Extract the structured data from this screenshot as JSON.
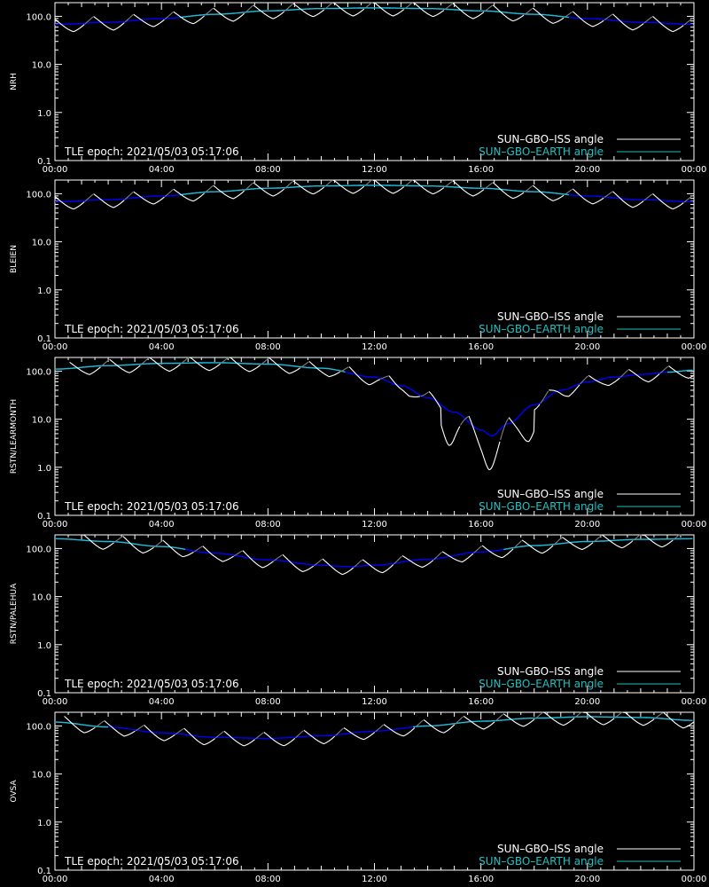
{
  "colors": {
    "background": "#000000",
    "axes": "#ffffff",
    "iss": "#ffffff",
    "iss_occulted": "#7f7f7f",
    "earth": "#20c0c0",
    "earth_low": "#0000ff"
  },
  "legend": {
    "iss_label": "SUN–GBO–ISS angle",
    "earth_label": "SUN–GBO–EARTH angle",
    "epoch": "TLE epoch: 2021/05/03 05:17:06"
  },
  "chart_data": [
    {
      "type": "line",
      "station": "NRH",
      "ylabel": "NRH",
      "yscale": "log",
      "ylim": [
        0.1,
        200
      ],
      "xlim": [
        0,
        24
      ],
      "xticks": [
        "00:00",
        "04:00",
        "08:00",
        "12:00",
        "16:00",
        "20:00",
        "00:00"
      ],
      "yticks": [
        "0.1",
        "1.0",
        "10.0",
        "100.0"
      ],
      "series": [
        {
          "name": "SUN–GBO–EARTH angle",
          "x": [
            0,
            2,
            4,
            6,
            8,
            10,
            12,
            14,
            16,
            18,
            20,
            22,
            24
          ],
          "y": [
            68,
            75,
            90,
            110,
            130,
            145,
            150,
            145,
            130,
            110,
            90,
            75,
            68
          ]
        },
        {
          "name": "SUN–GBO–ISS angle",
          "min": [
            55,
            48,
            48,
            68,
            95,
            120,
            130,
            125,
            115,
            95,
            72,
            58
          ],
          "max": [
            95,
            115,
            135,
            150,
            160,
            160,
            158,
            155,
            150,
            140,
            118,
            100
          ],
          "x": [
            0.7,
            2.2,
            3.7,
            5.2,
            6.7,
            8.2,
            9.7,
            11.2,
            12.7,
            14.2,
            15.7,
            17.2,
            18.7,
            20.2,
            21.7,
            23.2
          ]
        }
      ]
    },
    {
      "type": "line",
      "station": "BLEIEN",
      "ylabel": "BLEIEN",
      "yscale": "log",
      "ylim": [
        0.1,
        200
      ],
      "xlim": [
        0,
        24
      ],
      "xticks": [
        "00:00",
        "04:00",
        "08:00",
        "12:00",
        "16:00",
        "20:00",
        "00:00"
      ],
      "yticks": [
        "0.1",
        "1.0",
        "10.0",
        "100.0"
      ],
      "series": [
        {
          "name": "SUN–GBO–EARTH angle",
          "x": [
            0,
            2,
            4,
            6,
            8,
            10,
            12,
            14,
            16,
            18,
            20,
            22,
            24
          ],
          "y": [
            68,
            75,
            90,
            110,
            130,
            145,
            150,
            145,
            130,
            110,
            90,
            75,
            68
          ]
        },
        {
          "name": "SUN–GBO–ISS angle",
          "x": [
            0.7,
            2.2,
            3.7,
            5.2,
            6.7,
            8.2,
            9.7,
            11.2,
            12.7,
            14.2,
            15.7,
            17.2,
            18.7,
            20.2,
            21.7,
            23.2
          ]
        }
      ]
    },
    {
      "type": "line",
      "station": "RSTN/LEARMONTH",
      "ylabel": "RSTN/LEARMONTH",
      "yscale": "log",
      "ylim": [
        0.1,
        200
      ],
      "xlim": [
        0,
        24
      ],
      "xticks": [
        "00:00",
        "04:00",
        "08:00",
        "12:00",
        "16:00",
        "20:00",
        "00:00"
      ],
      "yticks": [
        "0.1",
        "1.0",
        "10.0",
        "100.0"
      ],
      "series": [
        {
          "name": "SUN–GBO–EARTH angle",
          "x": [
            0,
            2,
            4,
            6,
            8,
            10,
            12,
            13,
            14,
            15,
            16,
            16.4,
            17,
            18,
            19,
            20,
            21,
            22,
            23,
            24
          ],
          "y": [
            110,
            130,
            145,
            150,
            140,
            115,
            75,
            50,
            28,
            14,
            6,
            4.5,
            8,
            20,
            40,
            60,
            75,
            85,
            95,
            105
          ]
        },
        {
          "name": "SUN–GBO–ISS angle",
          "x": [
            1.3,
            2.8,
            4.3,
            5.8,
            7.3,
            8.8,
            10.3,
            11.8,
            13.3,
            14.8,
            16.3,
            17.8,
            19.3,
            20.8,
            22.3,
            23.8
          ]
        }
      ]
    },
    {
      "type": "line",
      "station": "RSTN/PALEHUA",
      "ylabel": "RSTN/PALEHUA",
      "yscale": "log",
      "ylim": [
        0.1,
        200
      ],
      "xlim": [
        0,
        24
      ],
      "xticks": [
        "00:00",
        "04:00",
        "08:00",
        "12:00",
        "16:00",
        "20:00",
        "00:00"
      ],
      "yticks": [
        "0.1",
        "1.0",
        "10.0",
        "100.0"
      ],
      "series": [
        {
          "name": "SUN–GBO–EARTH angle",
          "x": [
            0,
            2,
            4,
            6,
            8,
            10,
            11,
            12,
            14,
            16,
            18,
            20,
            22,
            24
          ],
          "y": [
            160,
            140,
            110,
            80,
            58,
            45,
            42,
            45,
            60,
            85,
            115,
            140,
            155,
            160
          ]
        },
        {
          "name": "SUN–GBO–ISS angle",
          "x": [
            1.8,
            3.3,
            4.8,
            6.3,
            7.8,
            9.3,
            10.8,
            12.3,
            13.8,
            15.3,
            16.8,
            18.3,
            19.8,
            21.3,
            22.8
          ]
        }
      ]
    },
    {
      "type": "line",
      "station": "OVSA",
      "ylabel": "OVSA",
      "yscale": "log",
      "ylim": [
        0.1,
        200
      ],
      "xlim": [
        0,
        24
      ],
      "xticks": [
        "00:00",
        "04:00",
        "08:00",
        "12:00",
        "16:00",
        "20:00",
        "00:00"
      ],
      "yticks": [
        "0.1",
        "1.0",
        "10.0",
        "100.0"
      ],
      "series": [
        {
          "name": "SUN–GBO–EARTH angle",
          "x": [
            0,
            2,
            4,
            6,
            8,
            10,
            12,
            14,
            16,
            18,
            20,
            22,
            24
          ],
          "y": [
            120,
            95,
            72,
            58,
            55,
            62,
            78,
            100,
            125,
            145,
            155,
            150,
            130
          ]
        },
        {
          "name": "SUN–GBO–ISS angle",
          "x": [
            1.1,
            2.6,
            4.1,
            5.6,
            7.1,
            8.6,
            10.1,
            11.6,
            13.1,
            14.6,
            16.1,
            17.6,
            19.1,
            20.6,
            22.1,
            23.6
          ]
        }
      ]
    }
  ]
}
